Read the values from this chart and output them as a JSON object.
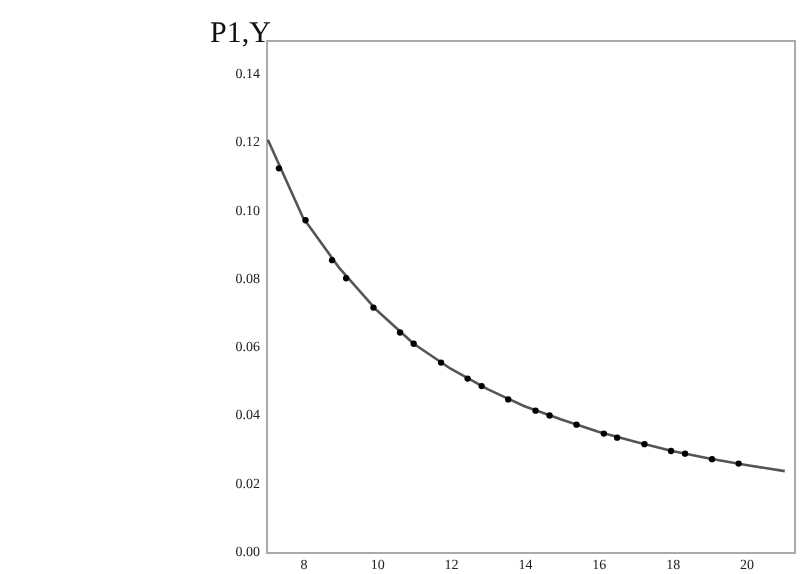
{
  "chart_data": {
    "type": "scatter",
    "ylabel": "P1,Y",
    "xlim": [
      7,
      21.3
    ],
    "xticks": [
      8,
      10,
      12,
      14,
      16,
      18,
      20
    ],
    "ylim": [
      0,
      0.15
    ],
    "yticks": [
      {
        "value": 0,
        "label": "0.00"
      },
      0.02,
      0.04,
      0.06,
      0.08,
      {
        "value": 0.1,
        "label": "0.10"
      },
      0.12,
      0.14
    ],
    "grid": false,
    "marker": "circle",
    "series": [
      {
        "type": "line",
        "color": "#555555",
        "marker": "none",
        "x": [
          7.05,
          8,
          9,
          10,
          11,
          12,
          13,
          14,
          15,
          16,
          17,
          18,
          19,
          20,
          21.05
        ],
        "values": [
          0.1208,
          0.098,
          0.083,
          0.0708,
          0.061,
          0.0537,
          0.0477,
          0.0427,
          0.0388,
          0.0352,
          0.0323,
          0.0296,
          0.0274,
          0.0255,
          0.0237
        ]
      },
      {
        "type": "scatter",
        "color": "#000000",
        "x": [
          7.35,
          8.07,
          8.79,
          9.17,
          9.91,
          10.63,
          11.0,
          11.74,
          12.46,
          12.84,
          13.56,
          14.3,
          14.68,
          15.41,
          16.15,
          16.51,
          17.25,
          17.97,
          18.35,
          19.08,
          19.8
        ],
        "values": [
          0.1124,
          0.0972,
          0.0855,
          0.0802,
          0.0716,
          0.0643,
          0.061,
          0.0555,
          0.0508,
          0.0486,
          0.0447,
          0.0414,
          0.04,
          0.0373,
          0.0347,
          0.0335,
          0.0316,
          0.0296,
          0.0288,
          0.0272,
          0.0259
        ]
      }
    ]
  }
}
